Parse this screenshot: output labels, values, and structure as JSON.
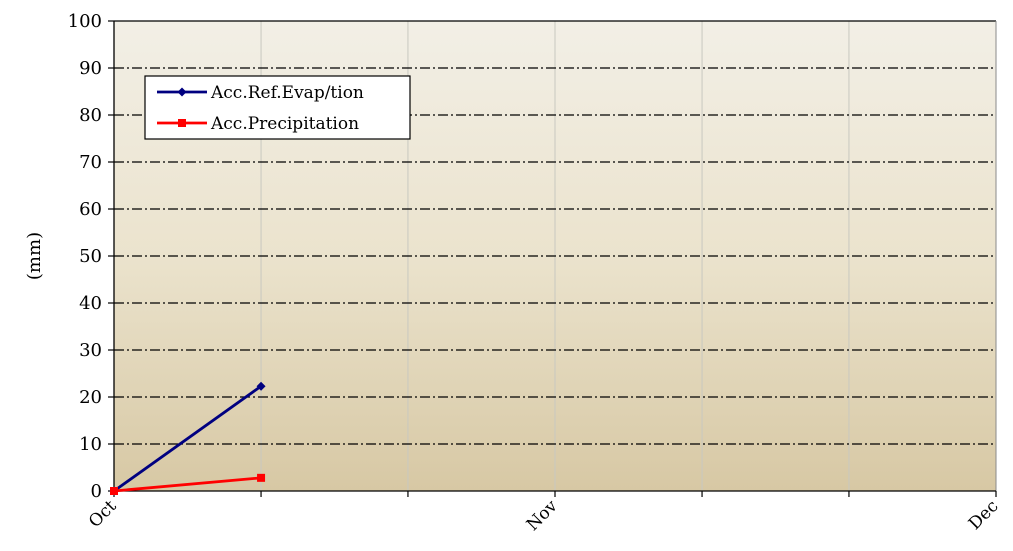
{
  "chart_data": {
    "type": "line",
    "title": "",
    "xlabel": "",
    "ylabel": "(mm)",
    "ylim": [
      0,
      100
    ],
    "y_ticks": [
      0,
      10,
      20,
      30,
      40,
      50,
      60,
      70,
      80,
      90,
      100
    ],
    "x_range_days": [
      0,
      61
    ],
    "x_tick_labels": [
      "Oct",
      "Nov",
      "Dec"
    ],
    "x_tick_label_days": [
      0,
      30.5,
      61
    ],
    "x_vertical_grid_days": [
      10.17,
      20.33,
      30.5,
      40.67,
      50.83,
      61
    ],
    "grid": "horizontal dash-dot, vertical solid light",
    "legend_position": "top-left",
    "series": [
      {
        "name": "Acc.Ref.Evap/tion",
        "color": "#000080",
        "marker": "diamond",
        "x_days": [
          0,
          10.17
        ],
        "values": [
          0,
          22.3
        ]
      },
      {
        "name": "Acc.Precipitation",
        "color": "#ff0000",
        "marker": "square",
        "x_days": [
          0,
          10.17
        ],
        "values": [
          0,
          2.8
        ]
      }
    ]
  }
}
